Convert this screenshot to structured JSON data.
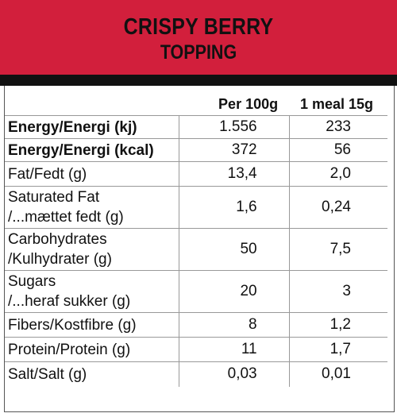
{
  "header": {
    "line1": "CRISPY BERRY",
    "line2": "TOPPING"
  },
  "columns": [
    "Per 100g",
    "1 meal 15g"
  ],
  "rows": [
    {
      "label1": "Energy/Energi (kj)",
      "label2": "",
      "v1": "1.556",
      "v2": "233",
      "bold": true
    },
    {
      "label1": "Energy/Energi (kcal)",
      "label2": "",
      "v1": "372",
      "v2": "56",
      "bold": true
    },
    {
      "label1": "Fat/Fedt (g)",
      "label2": "",
      "v1": "13,4",
      "v2": "2,0",
      "bold": false
    },
    {
      "label1": "Saturated Fat",
      "label2": "/...mættet fedt (g)",
      "v1": "1,6",
      "v2": "0,24",
      "bold": false
    },
    {
      "label1": "Carbohydrates",
      "label2": "/Kulhydrater (g)",
      "v1": "50",
      "v2": "7,5",
      "bold": false
    },
    {
      "label1": "Sugars",
      "label2": "/...heraf sukker (g)",
      "v1": "20",
      "v2": "3",
      "bold": false
    },
    {
      "label1": "Fibers/Kostfibre (g)",
      "label2": "",
      "v1": "8",
      "v2": "1,2",
      "bold": false
    },
    {
      "label1": "Protein/Protein (g)",
      "label2": "",
      "v1": "11",
      "v2": "1,7",
      "bold": false
    },
    {
      "label1": "Salt/Salt (g)",
      "label2": "",
      "v1": "0,03",
      "v2": "0,01",
      "bold": false
    }
  ]
}
